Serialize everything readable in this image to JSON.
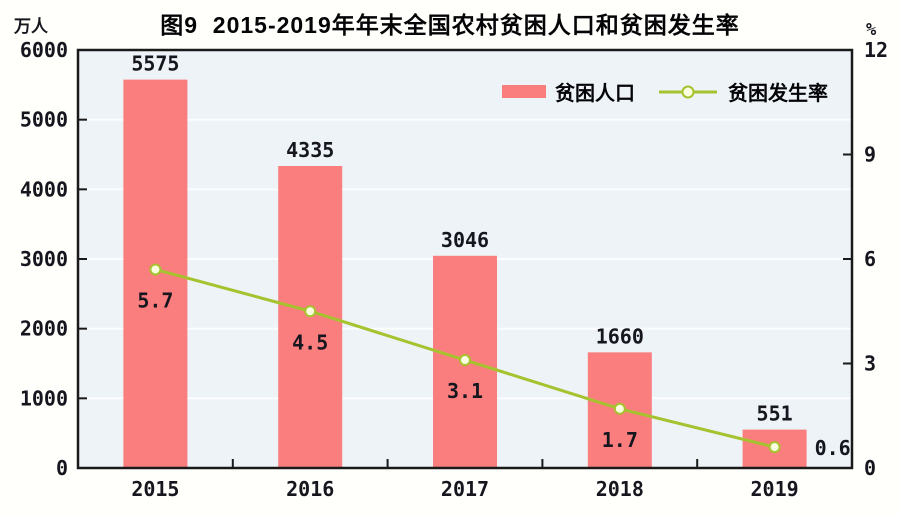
{
  "chart_data": {
    "type": "bar",
    "title": "图9  2015-2019年年末全国农村贫困人口和贫困发生率",
    "categories": [
      "2015",
      "2016",
      "2017",
      "2018",
      "2019"
    ],
    "series": [
      {
        "name": "贫困人口",
        "type": "bar",
        "axis": "left",
        "values": [
          5575,
          4335,
          3046,
          1660,
          551
        ],
        "color": "#fb7e7e"
      },
      {
        "name": "贫困发生率",
        "type": "line",
        "axis": "right",
        "values": [
          5.7,
          4.5,
          3.1,
          1.7,
          0.6
        ],
        "color": "#a6c22e",
        "marker_fill": "#fbffdf"
      }
    ],
    "axes": {
      "left": {
        "unit": "万人",
        "min": 0,
        "max": 6000,
        "step": 1000,
        "ticks": [
          0,
          1000,
          2000,
          3000,
          4000,
          5000,
          6000
        ]
      },
      "right": {
        "unit": "%",
        "min": 0,
        "max": 12,
        "step": 3,
        "ticks": [
          0,
          3,
          6,
          9,
          12
        ]
      }
    },
    "grid": true,
    "legend_position": "top-right-inside",
    "plot_bg": "#edf3f7",
    "grid_color": "#fbfdfe",
    "axis_color": "#1a1a1a"
  }
}
